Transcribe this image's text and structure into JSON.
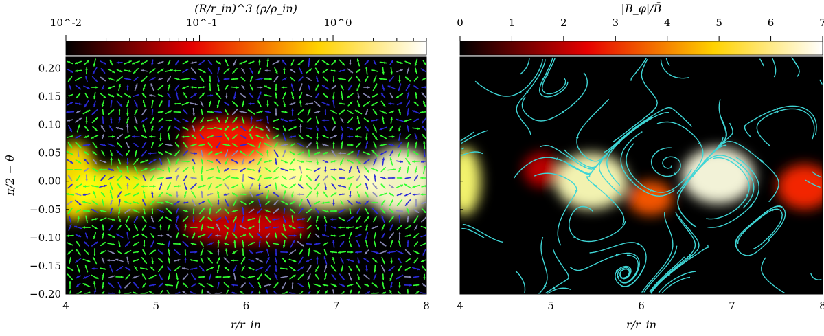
{
  "chart_data": [
    {
      "type": "heatmap",
      "subtype": "density map with velocity quiver overlay",
      "colormap": "hot",
      "colorbar": {
        "label": "(R/r_in)^3 (ρ/ρ_in)",
        "scale": "log",
        "range": [
          0.01,
          5
        ],
        "tick_labels": [
          "10^-2",
          "10^-1",
          "10^0"
        ],
        "position": "top"
      },
      "xlabel": "r/r_in",
      "ylabel": "π/2 − θ",
      "xlim": [
        4,
        8
      ],
      "ylim": [
        -0.2,
        0.22
      ],
      "x_ticks": [
        4,
        5,
        6,
        7,
        8
      ],
      "y_ticks": [
        -0.2,
        -0.15,
        -0.1,
        -0.05,
        0.0,
        0.05,
        0.1,
        0.15,
        0.2
      ],
      "x_tick_labels": [
        "4",
        "5",
        "6",
        "7",
        "8"
      ],
      "y_tick_labels": [
        "−0.20",
        "−0.15",
        "−0.10",
        "−0.05",
        "0.00",
        "0.05",
        "0.10",
        "0.15",
        "0.20"
      ],
      "arrow_colors": [
        "#33ff33",
        "#2a2ad8",
        "#8a8ab8"
      ],
      "blobs": [
        {
          "x": 4.1,
          "y": 0.0,
          "w": 0.25,
          "h": 0.07,
          "v": 0.7
        },
        {
          "x": 4.6,
          "y": -0.015,
          "w": 0.55,
          "h": 0.04,
          "v": 0.75
        },
        {
          "x": 5.5,
          "y": 0.0,
          "w": 0.6,
          "h": 0.045,
          "v": 0.85
        },
        {
          "x": 6.3,
          "y": 0.02,
          "w": 0.45,
          "h": 0.05,
          "v": 0.85
        },
        {
          "x": 6.9,
          "y": 0.0,
          "w": 0.6,
          "h": 0.05,
          "v": 0.9
        },
        {
          "x": 7.7,
          "y": 0.0,
          "w": 0.4,
          "h": 0.06,
          "v": 0.95
        },
        {
          "x": 5.8,
          "y": 0.07,
          "w": 0.5,
          "h": 0.04,
          "v": 0.4
        },
        {
          "x": 6.0,
          "y": -0.08,
          "w": 0.7,
          "h": 0.03,
          "v": 0.3
        }
      ]
    },
    {
      "type": "heatmap",
      "subtype": "toroidal field magnitude with poloidal field streamlines",
      "colormap": "hot",
      "colorbar": {
        "label": "|B_φ|/B̄",
        "scale": "linear",
        "range": [
          0,
          7
        ],
        "tick_labels": [
          "0",
          "1",
          "2",
          "3",
          "4",
          "5",
          "6",
          "7"
        ],
        "position": "top"
      },
      "xlabel": "r/r_in",
      "xlim": [
        4,
        8
      ],
      "ylim": [
        -0.2,
        0.22
      ],
      "x_ticks": [
        4,
        5,
        6,
        7,
        8
      ],
      "x_tick_labels": [
        "4",
        "5",
        "6",
        "7",
        "8"
      ],
      "streamline_color": "#3fd6d6",
      "blobs": [
        {
          "x": 4.05,
          "y": 0.0,
          "w": 0.18,
          "h": 0.06,
          "v": 6.0
        },
        {
          "x": 5.45,
          "y": 0.0,
          "w": 0.4,
          "h": 0.05,
          "v": 6.5
        },
        {
          "x": 6.85,
          "y": 0.01,
          "w": 0.4,
          "h": 0.05,
          "v": 6.8
        },
        {
          "x": 6.1,
          "y": -0.03,
          "w": 0.25,
          "h": 0.03,
          "v": 3.5
        },
        {
          "x": 7.8,
          "y": -0.01,
          "w": 0.3,
          "h": 0.04,
          "v": 3.0
        },
        {
          "x": 4.9,
          "y": 0.02,
          "w": 0.2,
          "h": 0.03,
          "v": 2.0
        }
      ]
    }
  ],
  "colors": {
    "background": "#ffffff",
    "axis": "#000000"
  }
}
